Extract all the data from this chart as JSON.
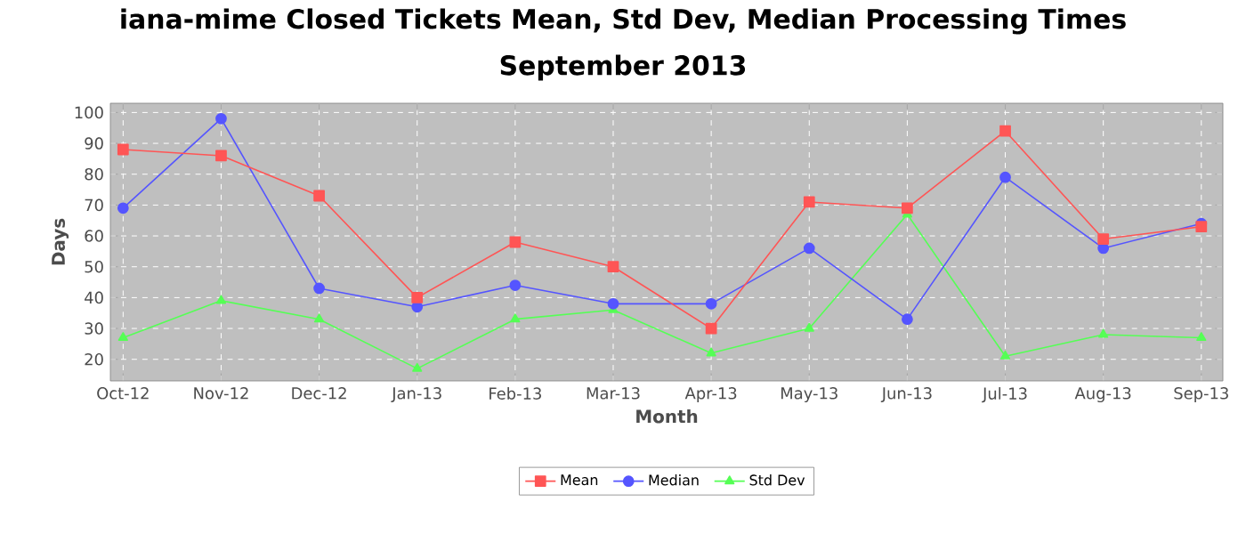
{
  "chart_data": {
    "type": "line",
    "title": "iana-mime Closed Tickets Mean, Std Dev, Median Processing Times",
    "subtitle": "September 2013",
    "xlabel": "Month",
    "ylabel": "Days",
    "categories": [
      "Oct-12",
      "Nov-12",
      "Dec-12",
      "Jan-13",
      "Feb-13",
      "Mar-13",
      "Apr-13",
      "May-13",
      "Jun-13",
      "Jul-13",
      "Aug-13",
      "Sep-13"
    ],
    "series": [
      {
        "name": "Mean",
        "color": "#ff5555",
        "marker": "square",
        "values": [
          88,
          86,
          73,
          40,
          58,
          50,
          30,
          71,
          69,
          94,
          59,
          63
        ]
      },
      {
        "name": "Median",
        "color": "#5555ff",
        "marker": "circle",
        "values": [
          69,
          98,
          43,
          37,
          44,
          38,
          38,
          56,
          33,
          79,
          56,
          64
        ]
      },
      {
        "name": "Std Dev",
        "color": "#55ff55",
        "marker": "triangle",
        "values": [
          27,
          39,
          33,
          17,
          33,
          36,
          22,
          30,
          67,
          21,
          28,
          27
        ]
      }
    ],
    "ylim": [
      13,
      103
    ],
    "yticks": [
      20,
      30,
      40,
      50,
      60,
      70,
      80,
      90,
      100
    ],
    "grid": true,
    "legend": "bottom",
    "line_style": "solid"
  }
}
